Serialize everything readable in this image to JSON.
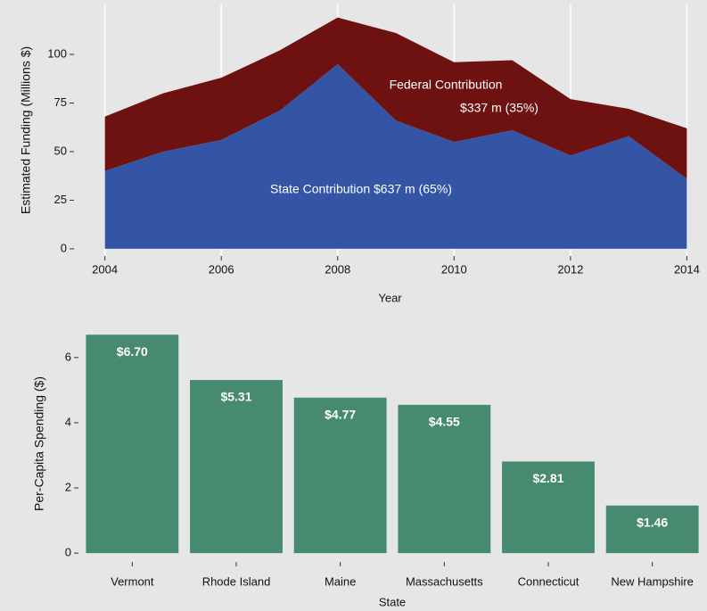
{
  "chart_data": [
    {
      "type": "area",
      "x": [
        2004,
        2005,
        2006,
        2007,
        2008,
        2009,
        2010,
        2011,
        2012,
        2013,
        2014
      ],
      "series": [
        {
          "name": "State",
          "color": "#3455a6",
          "values": [
            40,
            50,
            56,
            71,
            95,
            66,
            55,
            61,
            48,
            58,
            36
          ]
        },
        {
          "name": "Federal",
          "color": "#6d1111",
          "values": [
            28,
            30,
            32,
            31,
            24,
            45,
            41,
            36,
            29,
            14,
            26
          ]
        }
      ],
      "annotations": [
        "Federal Contribution",
        "$337 m (35%)",
        "State Contribution $637 m (65%)"
      ],
      "xlabel": "Year",
      "ylabel": "Estimated Funding (Millions $)",
      "xlim": [
        2003.5,
        2014.3
      ],
      "xticks": [
        2004,
        2006,
        2008,
        2010,
        2012,
        2014
      ],
      "ylim": [
        -3.7,
        125.7
      ],
      "yticks": [
        0,
        25,
        50,
        75,
        100
      ],
      "grid": true
    },
    {
      "type": "bar",
      "categories": [
        "Vermont",
        "Rhode Island",
        "Maine",
        "Massachusetts",
        "Connecticut",
        "New Hampshire"
      ],
      "values": [
        6.7,
        5.31,
        4.77,
        4.55,
        2.81,
        1.46
      ],
      "value_labels": [
        "$6.70",
        "$5.31",
        "$4.77",
        "$4.55",
        "$2.81",
        "$1.46"
      ],
      "color": "#468a6f",
      "xlabel": "State",
      "ylabel": "Per-Capita Spending ($)",
      "ylim": [
        -0.27,
        6.98
      ],
      "yticks": [
        0,
        2,
        4,
        6
      ],
      "grid": true
    }
  ]
}
